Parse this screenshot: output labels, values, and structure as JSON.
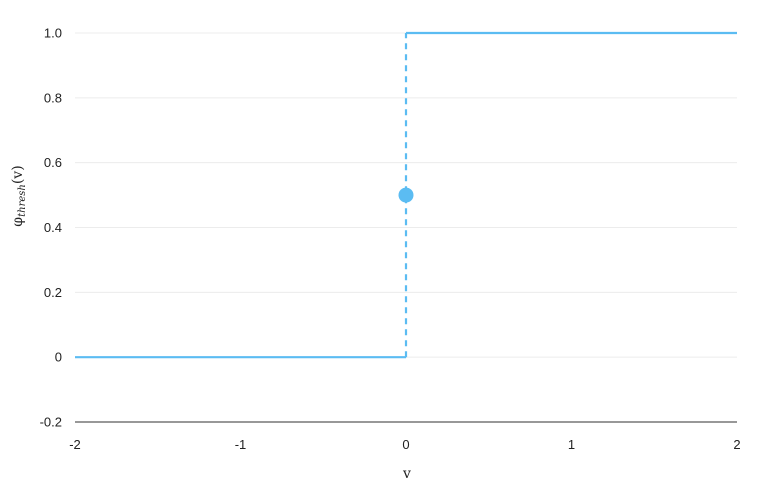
{
  "chart_data": {
    "type": "line",
    "title": "",
    "xlabel": "v",
    "ylabel": {
      "main": "φ",
      "subscript": "thresh",
      "suffix": "(v)"
    },
    "xlim": [
      -2,
      2
    ],
    "ylim": [
      -0.2,
      1.0
    ],
    "x_ticks": [
      -2,
      -1,
      0,
      1,
      2
    ],
    "x_tick_labels": [
      "-2",
      "-1",
      "0",
      "1",
      "2"
    ],
    "y_ticks": [
      -0.2,
      0,
      0.2,
      0.4,
      0.6,
      0.8,
      1.0
    ],
    "y_tick_labels": [
      "-0.2",
      "0",
      "0.2",
      "0.4",
      "0.6",
      "0.8",
      "1.0"
    ],
    "grid": "horizontal",
    "color": "#5bbcf2",
    "series": [
      {
        "style": "solid",
        "points": [
          [
            -2,
            0
          ],
          [
            0,
            0
          ]
        ]
      },
      {
        "style": "dashed",
        "points": [
          [
            0,
            0
          ],
          [
            0,
            1
          ]
        ]
      },
      {
        "style": "solid",
        "points": [
          [
            0,
            1
          ],
          [
            2,
            1
          ]
        ]
      }
    ],
    "markers": [
      {
        "x": 0,
        "y": 0.5
      }
    ]
  }
}
